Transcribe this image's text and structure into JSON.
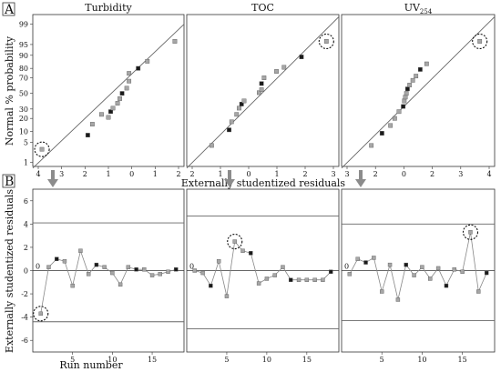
{
  "panel_labels": [
    "A",
    "B"
  ],
  "axis_labels": {
    "top_y": "Normal % probability",
    "top_x": "Externally studentized residuals",
    "bottom_y": "Externally studentized residuals",
    "bottom_x": "Run number"
  },
  "chart_data": [
    {
      "type": "scatter",
      "title": "Turbidity",
      "panel": "A",
      "xlabel": "Externally studentized residuals",
      "ylabel": "Normal % probability",
      "x_reversed": true,
      "xlim": [
        4,
        -2.6
      ],
      "x_ticks": [
        "4",
        "3",
        "2",
        "1",
        "0",
        "1",
        "2"
      ],
      "y_ticks": [
        "1",
        "5",
        "10",
        "20",
        "30",
        "50",
        "70",
        "80",
        "90",
        "95",
        "99"
      ],
      "points": [
        {
          "x": 3.6,
          "y": 3.0,
          "outlier": true
        },
        {
          "x": 1.6,
          "y": 8.0
        },
        {
          "x": 1.4,
          "y": 15.0
        },
        {
          "x": 1.0,
          "y": 24.0
        },
        {
          "x": 0.7,
          "y": 21.0
        },
        {
          "x": 0.6,
          "y": 27.0
        },
        {
          "x": 0.5,
          "y": 31.0
        },
        {
          "x": 0.3,
          "y": 37.0
        },
        {
          "x": 0.2,
          "y": 43.0
        },
        {
          "x": 0.1,
          "y": 50.0
        },
        {
          "x": -0.1,
          "y": 57.0
        },
        {
          "x": -0.2,
          "y": 66.0
        },
        {
          "x": -0.2,
          "y": 75.0
        },
        {
          "x": -0.6,
          "y": 80.0
        },
        {
          "x": -1.0,
          "y": 86.0
        },
        {
          "x": -2.2,
          "y": 96.0
        }
      ],
      "fit_line": [
        [
          4.0,
          0.6
        ],
        [
          -2.6,
          99.0
        ]
      ]
    },
    {
      "type": "scatter",
      "title": "TOC",
      "panel": "A",
      "xlabel": "Externally studentized residuals",
      "ylabel": "Normal % probability",
      "xlim": [
        -3,
        3.1
      ],
      "x_ticks": [
        "2",
        "1",
        "0",
        "1",
        "2",
        "3"
      ],
      "points": [
        {
          "x": -2.0,
          "y": 4.0
        },
        {
          "x": -1.3,
          "y": 11.0
        },
        {
          "x": -1.2,
          "y": 17.0
        },
        {
          "x": -1.0,
          "y": 24.0
        },
        {
          "x": -0.9,
          "y": 31.0
        },
        {
          "x": -0.8,
          "y": 36.0
        },
        {
          "x": -0.7,
          "y": 40.0
        },
        {
          "x": -0.1,
          "y": 51.0
        },
        {
          "x": 0.0,
          "y": 55.0
        },
        {
          "x": 0.0,
          "y": 63.0
        },
        {
          "x": 0.1,
          "y": 70.0
        },
        {
          "x": 0.6,
          "y": 77.0
        },
        {
          "x": 0.9,
          "y": 81.0
        },
        {
          "x": 1.6,
          "y": 89.0
        },
        {
          "x": 2.6,
          "y": 96.0,
          "outlier": true
        }
      ],
      "fit_line": [
        [
          -3.0,
          0.5
        ],
        [
          3.1,
          99.5
        ]
      ]
    },
    {
      "type": "scatter",
      "title": "UV",
      "title_subscript": "254",
      "panel": "A",
      "xlabel": "Externally studentized residuals",
      "ylabel": "Normal % probability",
      "xlim": [
        -3,
        4.2
      ],
      "x_ticks": [
        "3",
        "2",
        "0",
        "2",
        "3",
        "4"
      ],
      "points": [
        {
          "x": -1.6,
          "y": 4.0
        },
        {
          "x": -1.1,
          "y": 9.0
        },
        {
          "x": -0.7,
          "y": 14.0
        },
        {
          "x": -0.5,
          "y": 20.0
        },
        {
          "x": -0.3,
          "y": 27.0
        },
        {
          "x": -0.1,
          "y": 33.0
        },
        {
          "x": -0.05,
          "y": 40.0
        },
        {
          "x": 0.0,
          "y": 45.0
        },
        {
          "x": 0.05,
          "y": 50.0
        },
        {
          "x": 0.1,
          "y": 56.0
        },
        {
          "x": 0.2,
          "y": 61.0
        },
        {
          "x": 0.35,
          "y": 67.0
        },
        {
          "x": 0.5,
          "y": 72.0
        },
        {
          "x": 0.7,
          "y": 79.0
        },
        {
          "x": 1.0,
          "y": 84.0
        },
        {
          "x": 3.5,
          "y": 96.0,
          "outlier": true
        }
      ],
      "fit_line": [
        [
          -3.0,
          0.5
        ],
        [
          4.2,
          99.5
        ]
      ]
    },
    {
      "type": "line",
      "panel": "B",
      "xlabel": "Run number",
      "ylabel": "Externally studentized residuals",
      "series_for": "Turbidity",
      "xlim": [
        0,
        19
      ],
      "ylim": [
        -7,
        7
      ],
      "y_ticks": [
        "6",
        "4",
        "2",
        "0",
        "-2",
        "-4",
        "-6"
      ],
      "x_ticks": [
        "5",
        "10",
        "15"
      ],
      "limits": [
        4.1,
        -4.4
      ],
      "x": [
        1,
        2,
        3,
        4,
        5,
        6,
        7,
        8,
        9,
        10,
        11,
        12,
        13,
        14,
        15,
        16,
        17,
        18
      ],
      "values": [
        -3.7,
        0.3,
        1.0,
        0.8,
        -1.3,
        1.7,
        -0.3,
        0.5,
        0.3,
        -0.2,
        -1.2,
        0.3,
        0.1,
        0.1,
        -0.4,
        -0.3,
        -0.1,
        0.1
      ],
      "outlier_index": 0
    },
    {
      "type": "line",
      "panel": "B",
      "xlabel": "Run number",
      "ylabel": "Externally studentized residuals",
      "series_for": "TOC",
      "xlim": [
        0,
        19
      ],
      "ylim": [
        -7,
        7
      ],
      "x_ticks": [
        "5",
        "10",
        "15"
      ],
      "limits": [
        4.7,
        -5.0
      ],
      "x": [
        1,
        2,
        3,
        4,
        5,
        6,
        7,
        8,
        9,
        10,
        11,
        12,
        13,
        14,
        15,
        16,
        17,
        18
      ],
      "values": [
        0.0,
        -0.2,
        -1.3,
        0.8,
        -2.2,
        2.5,
        1.7,
        1.5,
        -1.1,
        -0.7,
        -0.4,
        0.3,
        -0.8,
        -0.8,
        -0.8,
        -0.8,
        -0.8,
        -0.1
      ],
      "outlier_index": 5
    },
    {
      "type": "line",
      "panel": "B",
      "xlabel": "Run number",
      "ylabel": "Externally studentized residuals",
      "series_for": "UV254",
      "xlim": [
        0,
        19
      ],
      "ylim": [
        -7,
        7
      ],
      "x_ticks": [
        "5",
        "10",
        "15"
      ],
      "limits": [
        4.0,
        -4.3
      ],
      "x": [
        1,
        2,
        3,
        4,
        5,
        6,
        7,
        8,
        9,
        10,
        11,
        12,
        13,
        14,
        15,
        16,
        17,
        18
      ],
      "values": [
        -0.3,
        1.0,
        0.7,
        1.1,
        -1.8,
        0.5,
        -2.5,
        0.5,
        -0.4,
        0.3,
        -0.7,
        0.2,
        -1.3,
        0.1,
        -0.1,
        3.3,
        -1.8,
        -0.2
      ],
      "outlier_index": 15
    }
  ],
  "colors": {
    "gray_marker": "#a6a6a6",
    "dark_marker": "#1a1a1a",
    "line": "#666666",
    "frame": "#333333",
    "arrow": "#8c8c8c"
  }
}
